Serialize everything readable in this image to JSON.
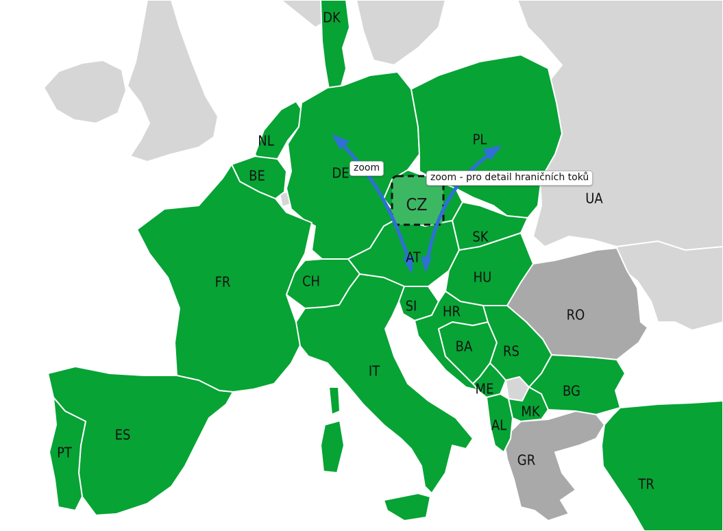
{
  "colors": {
    "sea": "#ffffff",
    "member": "#07a335",
    "non_member_light": "#d6d6d6",
    "non_member_dark": "#a9a9a9",
    "selected": "#3cb863",
    "border": "#ffffff",
    "arrow": "#2f6fd6"
  },
  "labels": {
    "DK": "DK",
    "NL": "NL",
    "BE": "BE",
    "DE": "DE",
    "PL": "PL",
    "CZ": "CZ",
    "UA": "UA",
    "SK": "SK",
    "AT": "AT",
    "HU": "HU",
    "FR": "FR",
    "CH": "CH",
    "SI": "SI",
    "HR": "HR",
    "RO": "RO",
    "BA": "BA",
    "RS": "RS",
    "IT": "IT",
    "ME": "ME",
    "BG": "BG",
    "MK": "MK",
    "AL": "AL",
    "ES": "ES",
    "PT": "PT",
    "GR": "GR",
    "TR": "TR"
  },
  "tooltips": {
    "zoom_left": "zoom",
    "zoom_right": "zoom - pro detail hraničních toků"
  }
}
